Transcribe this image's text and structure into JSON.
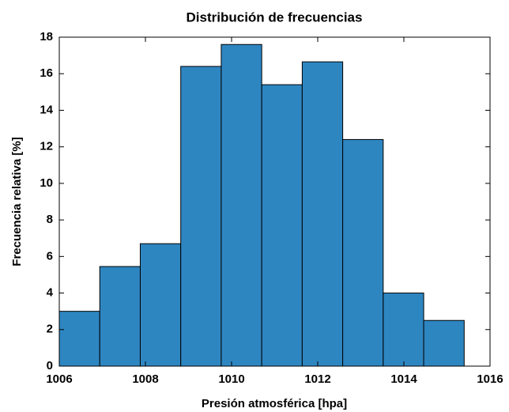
{
  "chart_data": {
    "type": "histogram",
    "title": "Distribución de frecuencias",
    "x_label": "Presión atmosférica [hpa]",
    "y_label": "Frecuencia relativa [%]",
    "bins": [
      1006.0,
      1006.94,
      1007.88,
      1008.82,
      1009.76,
      1010.7,
      1011.64,
      1012.58,
      1013.52,
      1014.46,
      1015.4
    ],
    "values": [
      3.0,
      5.45,
      6.7,
      16.4,
      17.6,
      15.4,
      16.65,
      12.4,
      4.0,
      2.5
    ],
    "color": "#2e86c1",
    "xlim": [
      1006,
      1016
    ],
    "xticks": [
      1006,
      1008,
      1010,
      1012,
      1014,
      1016
    ],
    "ylim": [
      0,
      18
    ],
    "yticks": [
      0,
      2,
      4,
      6,
      8,
      10,
      12,
      14,
      16,
      18
    ],
    "grid": false
  }
}
